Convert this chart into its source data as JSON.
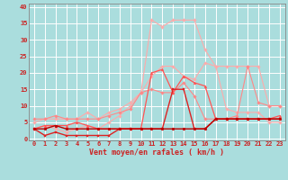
{
  "xlabel": "Vent moyen/en rafales ( km/h )",
  "xlim": [
    -0.5,
    23.5
  ],
  "ylim": [
    -0.5,
    41
  ],
  "yticks": [
    0,
    5,
    10,
    15,
    20,
    25,
    30,
    35,
    40
  ],
  "xticks": [
    0,
    1,
    2,
    3,
    4,
    5,
    6,
    7,
    8,
    9,
    10,
    11,
    12,
    13,
    14,
    15,
    16,
    17,
    18,
    19,
    20,
    21,
    22,
    23
  ],
  "bg_color": "#aadddd",
  "grid_color": "#ffffff",
  "lines": [
    {
      "color": "#ffaaaa",
      "lw": 0.8,
      "marker": "D",
      "ms": 1.8,
      "y": [
        3,
        4,
        3,
        2,
        3,
        4,
        3,
        5,
        7,
        10,
        14,
        36,
        34,
        36,
        36,
        36,
        27,
        22,
        9,
        8,
        8,
        8,
        5,
        5
      ]
    },
    {
      "color": "#ffaaaa",
      "lw": 0.8,
      "marker": "D",
      "ms": 1.8,
      "y": [
        5,
        6,
        6,
        6,
        6,
        8,
        6,
        8,
        9,
        11,
        14,
        19,
        22,
        22,
        19,
        18,
        23,
        22,
        22,
        22,
        22,
        22,
        10,
        10
      ]
    },
    {
      "color": "#ff8888",
      "lw": 0.8,
      "marker": "D",
      "ms": 1.8,
      "y": [
        6,
        6,
        7,
        6,
        6,
        6,
        6,
        7,
        8,
        9,
        14,
        15,
        14,
        14,
        17,
        13,
        6,
        6,
        6,
        7,
        22,
        11,
        10,
        10
      ]
    },
    {
      "color": "#ff5555",
      "lw": 0.9,
      "marker": "^",
      "ms": 2,
      "y": [
        3,
        4,
        4,
        4,
        5,
        4,
        3,
        3,
        3,
        3,
        3,
        20,
        21,
        14,
        19,
        17,
        16,
        6,
        6,
        6,
        6,
        6,
        6,
        7
      ]
    },
    {
      "color": "#dd2222",
      "lw": 1.0,
      "marker": "s",
      "ms": 2,
      "y": [
        3,
        1,
        2,
        1,
        1,
        1,
        1,
        1,
        3,
        3,
        3,
        3,
        3,
        15,
        15,
        3,
        3,
        6,
        6,
        6,
        6,
        6,
        6,
        6
      ]
    },
    {
      "color": "#bb0000",
      "lw": 1.0,
      "marker": "o",
      "ms": 2,
      "y": [
        3,
        3,
        4,
        3,
        3,
        3,
        3,
        3,
        3,
        3,
        3,
        3,
        3,
        3,
        3,
        3,
        3,
        6,
        6,
        6,
        6,
        6,
        6,
        6
      ]
    }
  ],
  "arrow_color": "#cc2222",
  "xlabel_fontsize": 6.0,
  "tick_fontsize": 5.0
}
